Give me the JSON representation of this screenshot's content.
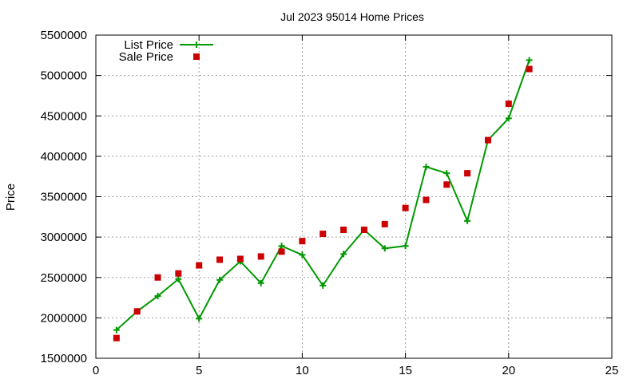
{
  "chart_data": {
    "type": "line",
    "title": "Jul 2023 95014 Home Prices",
    "xlabel": "",
    "ylabel": "Price",
    "xlim": [
      0,
      25
    ],
    "ylim": [
      1500000,
      5500000
    ],
    "x_ticks": [
      0,
      5,
      10,
      15,
      20,
      25
    ],
    "y_ticks": [
      1500000,
      2000000,
      2500000,
      3000000,
      3500000,
      4000000,
      4500000,
      5000000,
      5500000
    ],
    "grid": true,
    "legend_position": "top-left",
    "series": [
      {
        "name": "List Price",
        "style": "line+cross",
        "color": "#009900",
        "x": [
          1,
          2,
          3,
          4,
          5,
          6,
          7,
          8,
          9,
          10,
          11,
          12,
          13,
          14,
          15,
          16,
          17,
          18,
          19,
          20,
          21
        ],
        "y": [
          1850000,
          2080000,
          2270000,
          2480000,
          1990000,
          2470000,
          2700000,
          2430000,
          2890000,
          2780000,
          2400000,
          2790000,
          3090000,
          2860000,
          2890000,
          3870000,
          3790000,
          3200000,
          4200000,
          4470000,
          5190000
        ]
      },
      {
        "name": "Sale Price",
        "style": "square",
        "color": "#cc0000",
        "x": [
          1,
          2,
          3,
          4,
          5,
          6,
          7,
          8,
          9,
          10,
          11,
          12,
          13,
          14,
          15,
          16,
          17,
          18,
          19,
          20,
          21
        ],
        "y": [
          1750000,
          2080000,
          2500000,
          2550000,
          2650000,
          2720000,
          2730000,
          2760000,
          2820000,
          2950000,
          3040000,
          3090000,
          3090000,
          3160000,
          3360000,
          3460000,
          3650000,
          3790000,
          4200000,
          4650000,
          5080000
        ]
      }
    ]
  }
}
